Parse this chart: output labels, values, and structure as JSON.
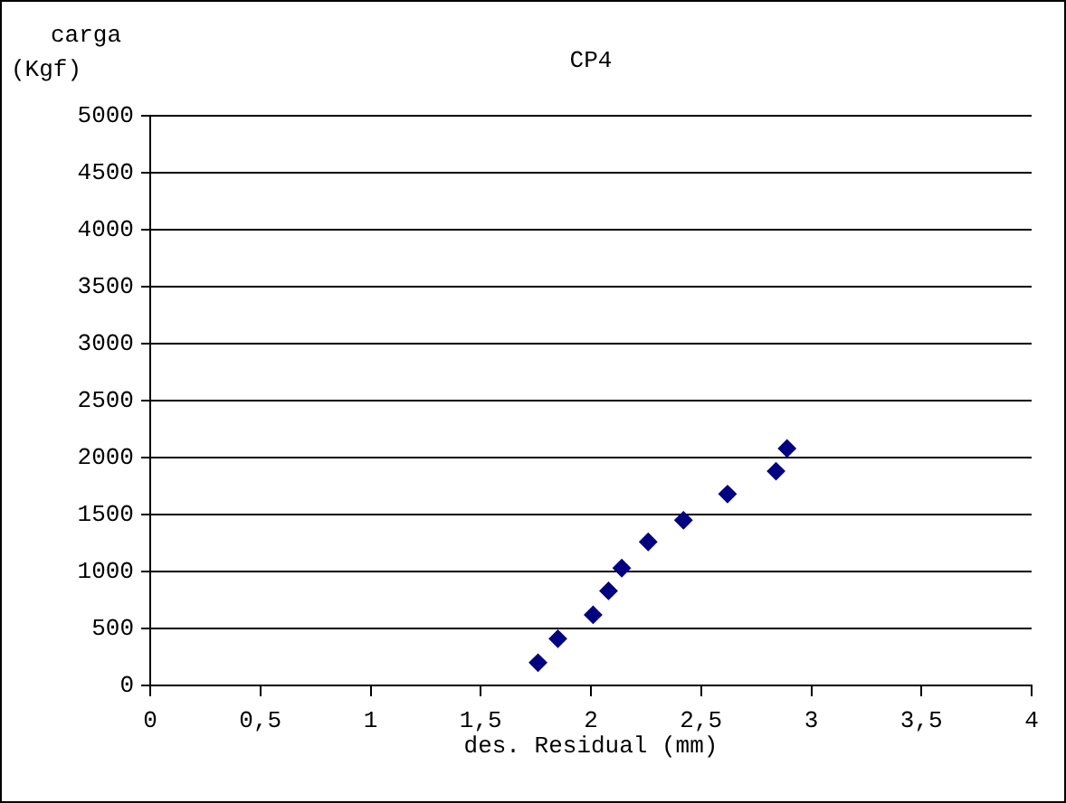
{
  "chart_data": {
    "type": "scatter",
    "title": "CP4",
    "xlabel": "des. Residual (mm)",
    "ylabel": "carga (Kgf)",
    "x": [
      1.76,
      1.85,
      2.01,
      2.08,
      2.14,
      2.26,
      2.42,
      2.62,
      2.84,
      2.89
    ],
    "series": [
      {
        "color": "#000080",
        "values": [
          200,
          410,
          620,
          830,
          1030,
          1260,
          1450,
          1680,
          1880,
          2080
        ]
      }
    ],
    "xlim": [
      0,
      4
    ],
    "xticks": [
      0,
      {
        "value": 0.5,
        "label": "0,5"
      },
      1,
      {
        "value": 1.5,
        "label": "1,5"
      },
      2,
      {
        "value": 2.5,
        "label": "2,5"
      },
      3,
      {
        "value": 3.5,
        "label": "3,5"
      },
      4
    ],
    "ylim": [
      0,
      5000
    ],
    "yticks": [
      0,
      500,
      1000,
      1500,
      2000,
      2500,
      3000,
      3500,
      4000,
      4500,
      5000
    ],
    "grid": "y",
    "legend": false,
    "marker": "diamond"
  }
}
